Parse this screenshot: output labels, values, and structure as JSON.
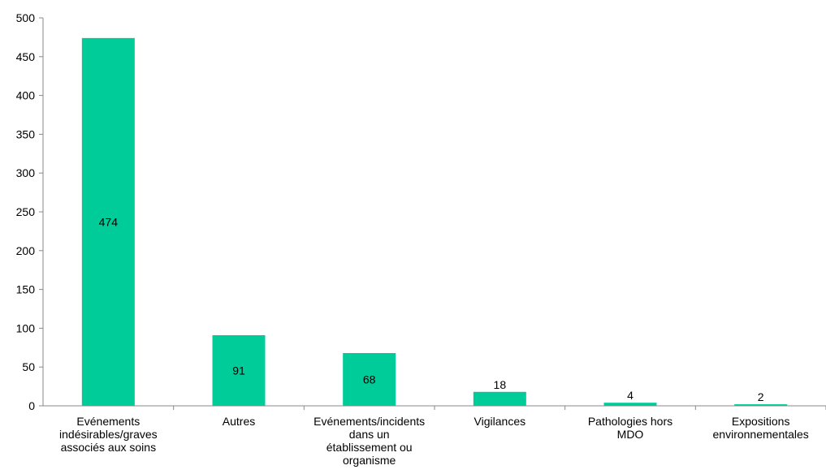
{
  "chart_data": {
    "type": "bar",
    "categories": [
      [
        "Evénements",
        "indésirables/graves",
        "associés aux soins"
      ],
      [
        "Autres"
      ],
      [
        "Evénements/incidents",
        "dans un",
        "établissement ou",
        "organisme"
      ],
      [
        "Vigilances"
      ],
      [
        "Pathologies hors",
        "MDO"
      ],
      [
        "Expositions",
        "environnementales"
      ]
    ],
    "values": [
      474,
      91,
      68,
      18,
      4,
      2
    ],
    "data_labels": [
      "474",
      "91",
      "68",
      "18",
      "4",
      "2"
    ],
    "ylim": [
      0,
      500
    ],
    "yticks": [
      0,
      50,
      100,
      150,
      200,
      250,
      300,
      350,
      400,
      450,
      500
    ],
    "title": "",
    "xlabel": "",
    "ylabel": "",
    "grid": false,
    "bar_color": "#00CC99"
  }
}
